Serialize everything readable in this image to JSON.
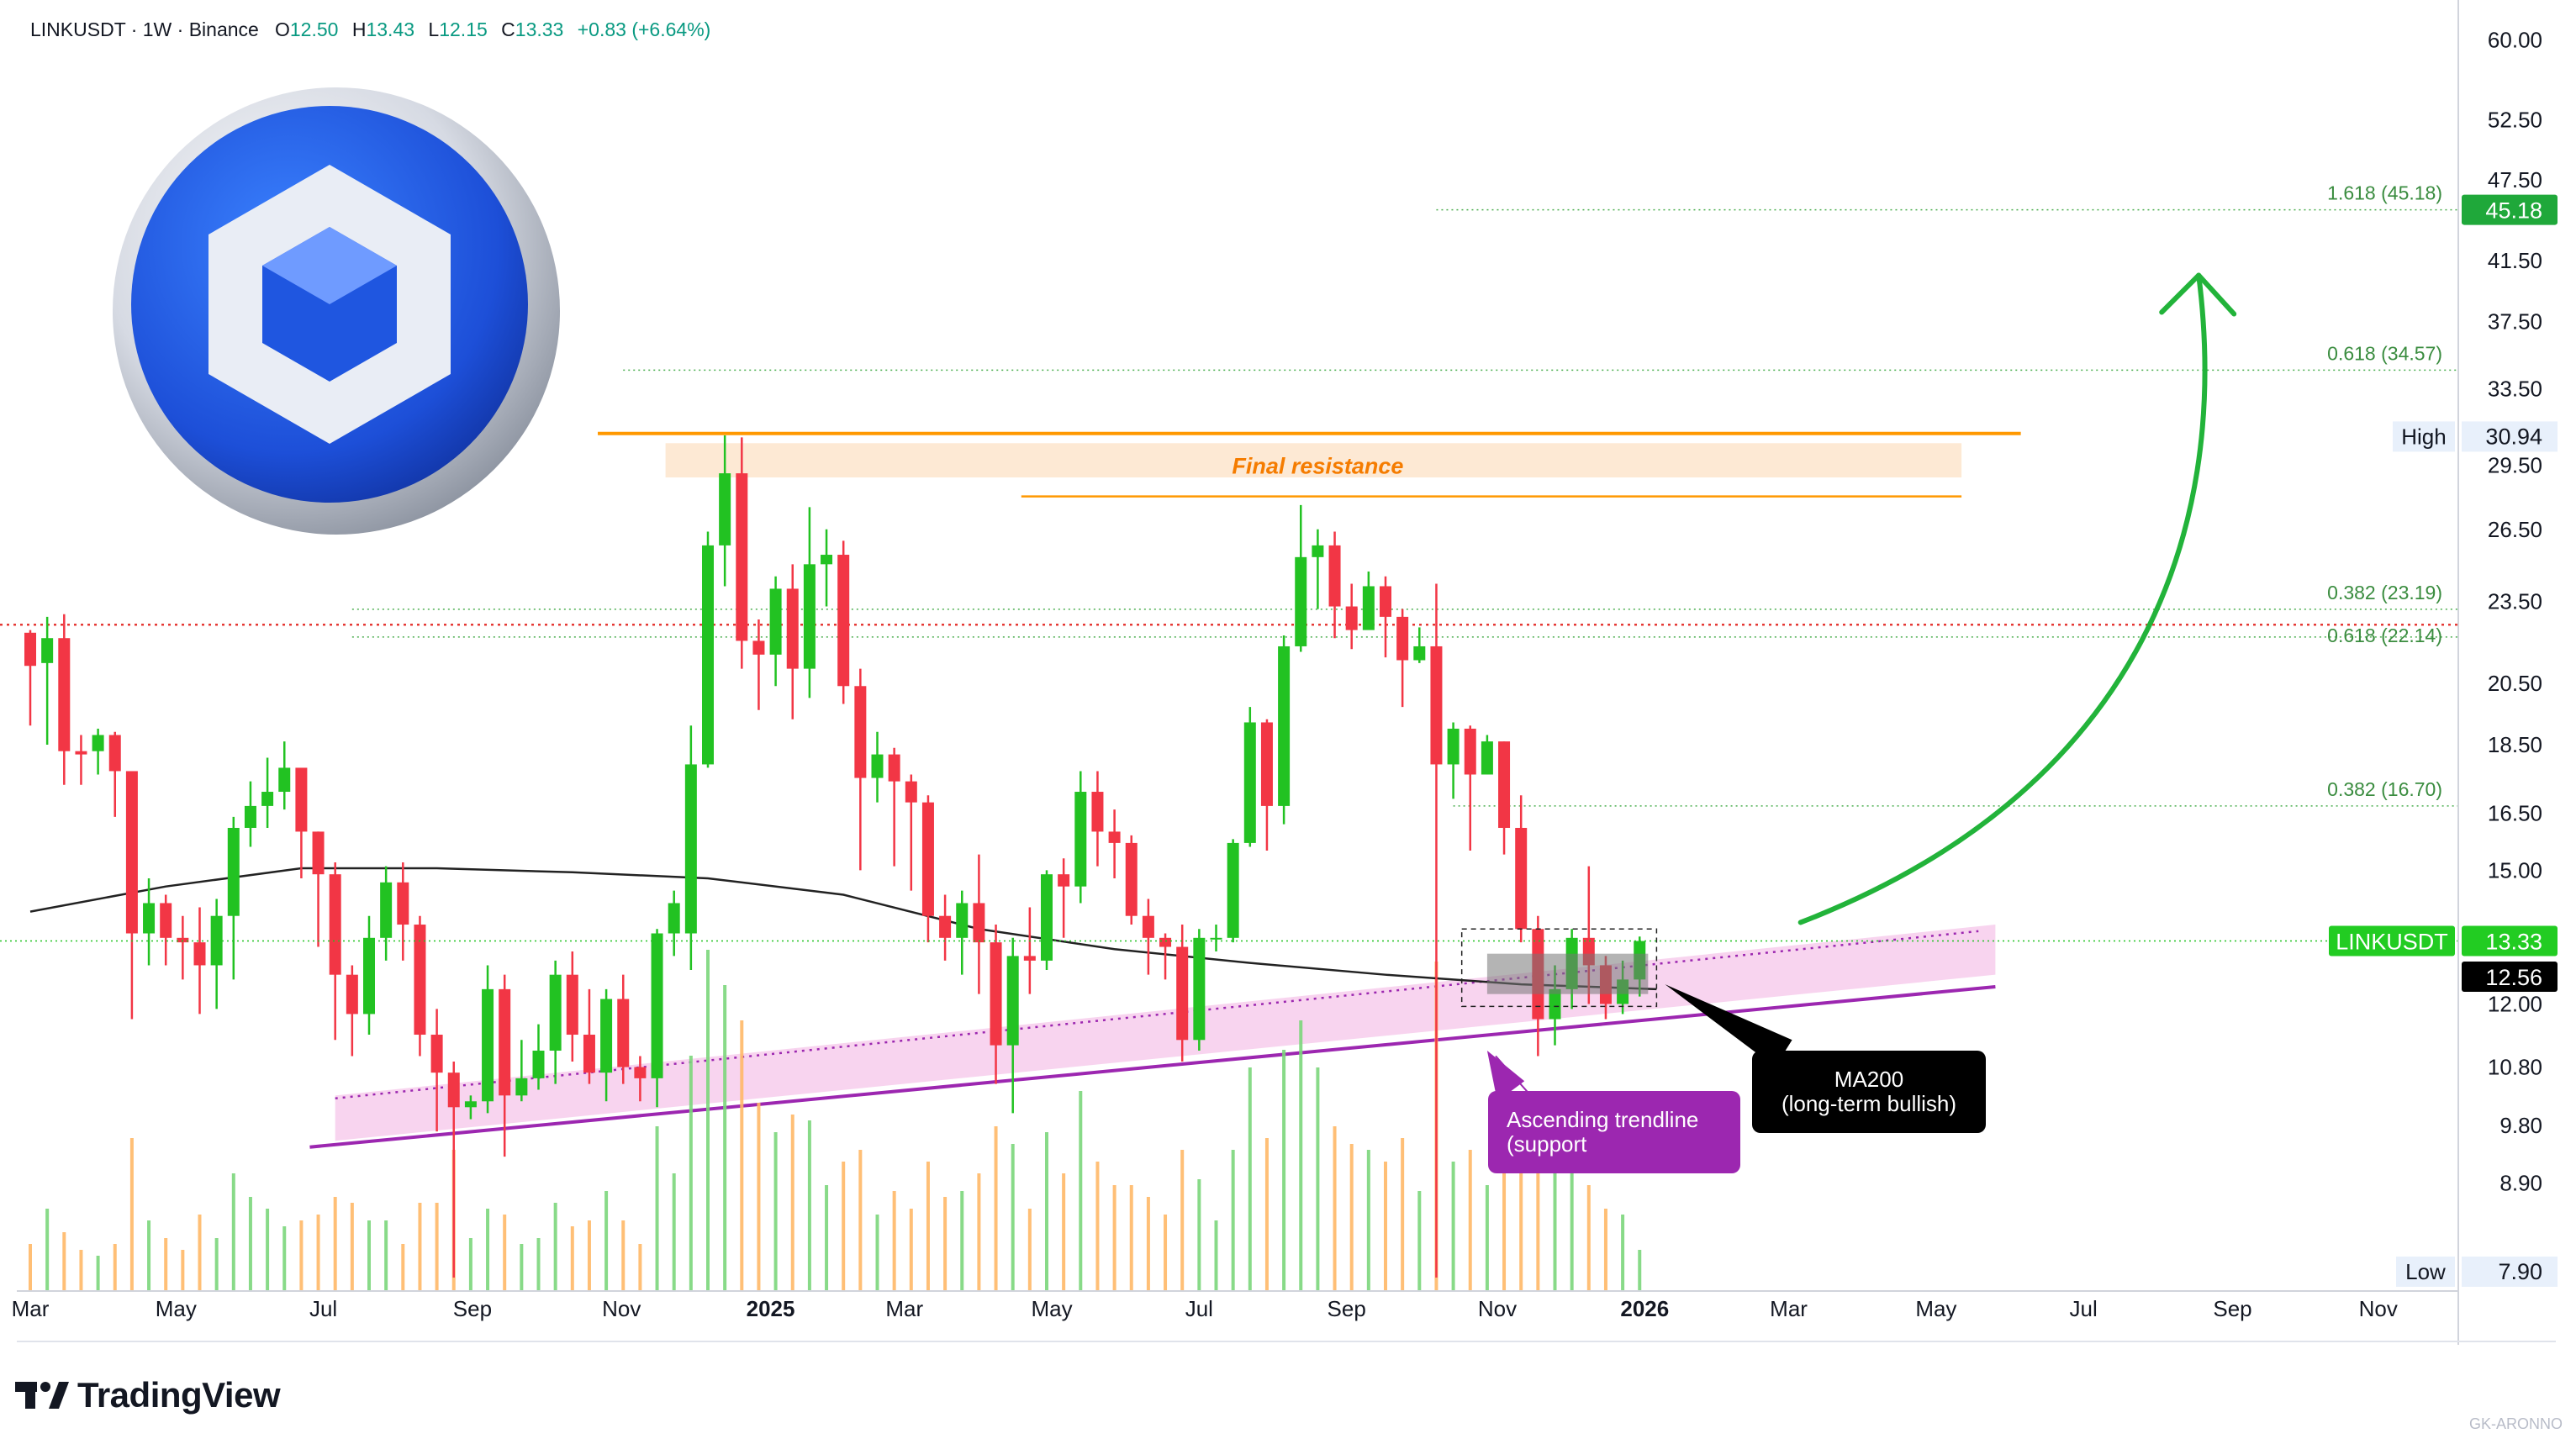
{
  "header": {
    "symbol_line": "LINKUSDT · 1W · Binance",
    "open_key": "O",
    "open": "12.50",
    "high_key": "H",
    "high": "13.43",
    "low_key": "L",
    "low": "12.15",
    "close_key": "C",
    "close": "13.33",
    "change": "+0.83 (+6.64%)"
  },
  "brand": {
    "name": "TradingView",
    "watermark": "GK-ARONNO"
  },
  "colors": {
    "up": "#22c222",
    "down": "#f23645",
    "ma200": "#222222",
    "fib": "#4caf50",
    "resistance": "#ff9800",
    "trendline": "#9c27b0",
    "trend_band": "#f6c5ea",
    "target_arrow": "#22b33a",
    "red_level": "#e53935"
  },
  "chart_data": {
    "type": "candlestick",
    "symbol": "LINKUSDT",
    "interval": "1W",
    "exchange": "Binance",
    "y_scale": "log",
    "ylim": [
      7.6,
      62
    ],
    "y_ticks": [
      "60.00",
      "52.50",
      "47.50",
      "41.50",
      "37.50",
      "33.50",
      "29.50",
      "26.50",
      "23.50",
      "20.50",
      "18.50",
      "16.50",
      "15.00",
      "12.00",
      "10.80",
      "9.80",
      "8.90"
    ],
    "x_ticks": [
      {
        "label": "Mar",
        "i": 0,
        "bold": false
      },
      {
        "label": "May",
        "i": 8.6,
        "bold": false
      },
      {
        "label": "Jul",
        "i": 17.3,
        "bold": false
      },
      {
        "label": "Sep",
        "i": 26.1,
        "bold": false
      },
      {
        "label": "Nov",
        "i": 34.9,
        "bold": false
      },
      {
        "label": "2025",
        "i": 43.7,
        "bold": true
      },
      {
        "label": "Mar",
        "i": 51.6,
        "bold": false
      },
      {
        "label": "May",
        "i": 60.3,
        "bold": false
      },
      {
        "label": "Jul",
        "i": 69.0,
        "bold": false
      },
      {
        "label": "Sep",
        "i": 77.7,
        "bold": false
      },
      {
        "label": "Nov",
        "i": 86.6,
        "bold": false
      },
      {
        "label": "2026",
        "i": 95.3,
        "bold": true
      },
      {
        "label": "Mar",
        "i": 103.8,
        "bold": false
      },
      {
        "label": "May",
        "i": 112.5,
        "bold": false
      },
      {
        "label": "Jul",
        "i": 121.2,
        "bold": false
      },
      {
        "label": "Sep",
        "i": 130.0,
        "bold": false
      },
      {
        "label": "Nov",
        "i": 138.6,
        "bold": false
      }
    ],
    "candles": [
      [
        0,
        22.3,
        21.1,
        22.4,
        19.1
      ],
      [
        1,
        21.2,
        22.1,
        22.9,
        18.5
      ],
      [
        2,
        22.1,
        18.3,
        23.0,
        17.3
      ],
      [
        3,
        18.3,
        18.2,
        18.8,
        17.3
      ],
      [
        4,
        18.3,
        18.8,
        19.0,
        17.6
      ],
      [
        5,
        18.8,
        17.7,
        18.9,
        16.4
      ],
      [
        6,
        17.7,
        13.5,
        17.7,
        11.7
      ],
      [
        7,
        13.5,
        14.2,
        14.8,
        12.8
      ],
      [
        8,
        14.2,
        13.4,
        14.4,
        12.8
      ],
      [
        9,
        13.4,
        13.3,
        13.9,
        12.5
      ],
      [
        10,
        13.3,
        12.8,
        14.1,
        11.8
      ],
      [
        11,
        12.8,
        13.9,
        14.3,
        11.9
      ],
      [
        12,
        13.9,
        16.1,
        16.4,
        12.5
      ],
      [
        13,
        16.1,
        16.7,
        17.4,
        15.6
      ],
      [
        14,
        16.7,
        17.1,
        18.1,
        16.1
      ],
      [
        15,
        17.1,
        17.8,
        18.6,
        16.6
      ],
      [
        16,
        17.8,
        16.0,
        17.7,
        14.8
      ],
      [
        17,
        16.0,
        14.9,
        16.0,
        13.2
      ],
      [
        18,
        14.9,
        12.6,
        15.2,
        11.3
      ],
      [
        19,
        12.6,
        11.8,
        12.8,
        11.0
      ],
      [
        20,
        11.8,
        13.4,
        13.9,
        11.4
      ],
      [
        21,
        13.4,
        14.7,
        15.1,
        12.9
      ],
      [
        22,
        14.7,
        13.7,
        15.2,
        12.9
      ],
      [
        23,
        13.7,
        11.4,
        13.9,
        11.0
      ],
      [
        24,
        11.4,
        10.7,
        11.9,
        9.7
      ],
      [
        25,
        10.7,
        10.1,
        10.9,
        7.6
      ],
      [
        26,
        10.1,
        10.2,
        10.3,
        9.9
      ],
      [
        27,
        10.2,
        12.3,
        12.8,
        10.0
      ],
      [
        28,
        12.3,
        10.3,
        12.6,
        9.3
      ],
      [
        29,
        10.3,
        10.6,
        11.3,
        10.2
      ],
      [
        30,
        10.6,
        11.1,
        11.6,
        10.4
      ],
      [
        31,
        11.1,
        12.6,
        12.9,
        10.5
      ],
      [
        32,
        12.6,
        11.4,
        13.1,
        10.9
      ],
      [
        33,
        11.4,
        10.7,
        12.3,
        10.5
      ],
      [
        34,
        10.7,
        12.1,
        12.3,
        10.2
      ],
      [
        35,
        12.1,
        10.8,
        12.6,
        10.5
      ],
      [
        36,
        10.8,
        10.6,
        11.0,
        10.2
      ],
      [
        37,
        10.6,
        13.5,
        13.6,
        10.1
      ],
      [
        38,
        13.5,
        14.2,
        14.5,
        13.0
      ],
      [
        39,
        13.5,
        17.9,
        19.1,
        12.7
      ],
      [
        40,
        17.9,
        25.8,
        26.4,
        17.8
      ],
      [
        41,
        25.8,
        29.1,
        31.0,
        24.1
      ],
      [
        42,
        29.1,
        22.0,
        30.9,
        21.0
      ],
      [
        43,
        22.0,
        21.5,
        22.8,
        19.6
      ],
      [
        44,
        21.5,
        24.0,
        24.5,
        20.4
      ],
      [
        45,
        24.0,
        21.0,
        25.0,
        19.3
      ],
      [
        46,
        21.0,
        25.0,
        27.5,
        20.0
      ],
      [
        47,
        25.0,
        25.4,
        26.5,
        23.3
      ],
      [
        48,
        25.4,
        20.4,
        26.0,
        19.8
      ],
      [
        49,
        20.4,
        17.5,
        21.0,
        15.0
      ],
      [
        50,
        17.5,
        18.2,
        18.9,
        16.8
      ],
      [
        51,
        18.2,
        17.4,
        18.4,
        15.1
      ],
      [
        52,
        17.4,
        16.8,
        17.6,
        14.5
      ],
      [
        53,
        16.8,
        13.9,
        17.0,
        13.3
      ],
      [
        54,
        13.9,
        13.4,
        14.4,
        12.9
      ],
      [
        55,
        13.4,
        14.2,
        14.5,
        12.6
      ],
      [
        56,
        14.2,
        13.3,
        15.4,
        12.2
      ],
      [
        57,
        13.3,
        11.2,
        13.7,
        10.5
      ],
      [
        58,
        11.2,
        13.0,
        13.4,
        10.0
      ],
      [
        59,
        13.0,
        12.9,
        14.1,
        12.2
      ],
      [
        60,
        12.9,
        14.9,
        15.0,
        12.7
      ],
      [
        61,
        14.9,
        14.6,
        15.3,
        13.4
      ],
      [
        62,
        14.6,
        17.1,
        17.7,
        14.2
      ],
      [
        63,
        17.1,
        16.0,
        17.7,
        15.1
      ],
      [
        64,
        16.0,
        15.7,
        16.6,
        14.8
      ],
      [
        65,
        15.7,
        13.9,
        15.9,
        13.7
      ],
      [
        66,
        13.9,
        13.4,
        14.3,
        12.6
      ],
      [
        67,
        13.4,
        13.2,
        13.5,
        12.5
      ],
      [
        68,
        13.2,
        11.3,
        13.7,
        10.9
      ],
      [
        69,
        11.3,
        13.4,
        13.6,
        11.1
      ],
      [
        70,
        13.4,
        13.4,
        13.7,
        13.1
      ],
      [
        71,
        13.4,
        15.7,
        15.8,
        13.3
      ],
      [
        72,
        15.7,
        19.2,
        19.7,
        15.6
      ],
      [
        73,
        19.2,
        16.7,
        19.3,
        15.5
      ],
      [
        74,
        16.7,
        21.8,
        22.2,
        16.2
      ],
      [
        75,
        21.8,
        25.3,
        27.6,
        21.6
      ],
      [
        76,
        25.3,
        25.8,
        26.5,
        23.2
      ],
      [
        77,
        25.8,
        23.3,
        26.4,
        22.1
      ],
      [
        78,
        23.3,
        22.4,
        24.2,
        21.7
      ],
      [
        79,
        22.4,
        24.1,
        24.7,
        22.6
      ],
      [
        80,
        24.1,
        22.9,
        24.5,
        21.4
      ],
      [
        81,
        22.9,
        21.3,
        23.2,
        19.7
      ],
      [
        82,
        21.3,
        21.8,
        22.5,
        21.2
      ],
      [
        83,
        21.8,
        17.9,
        24.2,
        7.6
      ],
      [
        84,
        17.9,
        19.0,
        19.2,
        16.9
      ],
      [
        85,
        19.0,
        17.6,
        19.1,
        15.5
      ],
      [
        86,
        17.6,
        18.6,
        18.8,
        17.6
      ],
      [
        87,
        18.6,
        16.1,
        18.6,
        15.4
      ],
      [
        88,
        16.1,
        13.6,
        17.0,
        13.3
      ],
      [
        89,
        13.6,
        11.7,
        13.9,
        11.0
      ],
      [
        90,
        11.7,
        12.3,
        12.8,
        11.2
      ],
      [
        91,
        12.3,
        13.4,
        13.6,
        11.9
      ],
      [
        92,
        13.4,
        12.8,
        15.1,
        12.0
      ],
      [
        93,
        12.8,
        12.0,
        13.0,
        11.7
      ],
      [
        94,
        12.0,
        12.5,
        12.9,
        11.8
      ],
      [
        95,
        12.5,
        13.33,
        13.43,
        12.15
      ]
    ],
    "volume": [
      [
        0,
        8
      ],
      [
        1,
        14
      ],
      [
        2,
        10
      ],
      [
        3,
        7
      ],
      [
        4,
        6
      ],
      [
        5,
        8
      ],
      [
        6,
        26
      ],
      [
        7,
        12
      ],
      [
        8,
        9
      ],
      [
        9,
        7
      ],
      [
        10,
        13
      ],
      [
        11,
        9
      ],
      [
        12,
        20
      ],
      [
        13,
        16
      ],
      [
        14,
        14
      ],
      [
        15,
        11
      ],
      [
        16,
        12
      ],
      [
        17,
        13
      ],
      [
        18,
        16
      ],
      [
        19,
        15
      ],
      [
        20,
        12
      ],
      [
        21,
        12
      ],
      [
        22,
        8
      ],
      [
        23,
        15
      ],
      [
        24,
        15
      ],
      [
        25,
        24
      ],
      [
        26,
        9
      ],
      [
        27,
        14
      ],
      [
        28,
        13
      ],
      [
        29,
        8
      ],
      [
        30,
        9
      ],
      [
        31,
        15
      ],
      [
        32,
        11
      ],
      [
        33,
        12
      ],
      [
        34,
        17
      ],
      [
        35,
        12
      ],
      [
        36,
        8
      ],
      [
        37,
        28
      ],
      [
        38,
        20
      ],
      [
        39,
        40
      ],
      [
        40,
        58
      ],
      [
        41,
        52
      ],
      [
        42,
        46
      ],
      [
        43,
        32
      ],
      [
        44,
        27
      ],
      [
        45,
        30
      ],
      [
        46,
        29
      ],
      [
        47,
        18
      ],
      [
        48,
        22
      ],
      [
        49,
        24
      ],
      [
        50,
        13
      ],
      [
        51,
        17
      ],
      [
        52,
        14
      ],
      [
        53,
        22
      ],
      [
        54,
        16
      ],
      [
        55,
        17
      ],
      [
        56,
        20
      ],
      [
        57,
        28
      ],
      [
        58,
        25
      ],
      [
        59,
        14
      ],
      [
        60,
        27
      ],
      [
        61,
        20
      ],
      [
        62,
        34
      ],
      [
        63,
        22
      ],
      [
        64,
        18
      ],
      [
        65,
        18
      ],
      [
        66,
        16
      ],
      [
        67,
        13
      ],
      [
        68,
        24
      ],
      [
        69,
        19
      ],
      [
        70,
        12
      ],
      [
        71,
        24
      ],
      [
        72,
        38
      ],
      [
        73,
        26
      ],
      [
        74,
        41
      ],
      [
        75,
        46
      ],
      [
        76,
        38
      ],
      [
        77,
        28
      ],
      [
        78,
        25
      ],
      [
        79,
        24
      ],
      [
        80,
        22
      ],
      [
        81,
        26
      ],
      [
        82,
        17
      ],
      [
        83,
        56
      ],
      [
        84,
        22
      ],
      [
        85,
        24
      ],
      [
        86,
        18
      ],
      [
        87,
        26
      ],
      [
        88,
        30
      ],
      [
        89,
        32
      ],
      [
        90,
        22
      ],
      [
        91,
        20
      ],
      [
        92,
        18
      ],
      [
        93,
        14
      ],
      [
        94,
        13
      ],
      [
        95,
        7
      ]
    ],
    "ma200": [
      [
        0,
        14.0
      ],
      [
        8,
        14.6
      ],
      [
        16,
        15.05
      ],
      [
        24,
        15.05
      ],
      [
        32,
        14.95
      ],
      [
        40,
        14.8
      ],
      [
        48,
        14.4
      ],
      [
        56,
        13.6
      ],
      [
        64,
        13.15
      ],
      [
        72,
        12.85
      ],
      [
        80,
        12.6
      ],
      [
        88,
        12.4
      ],
      [
        96,
        12.3
      ]
    ],
    "current_price": "13.33",
    "ma200_value": "12.56",
    "high": {
      "label": "High",
      "value": "30.94"
    },
    "low": {
      "label": "Low",
      "value": "7.90"
    },
    "fib_levels": [
      {
        "label": "1.618 (45.18)",
        "price": 45.18,
        "from": 83
      },
      {
        "label": "0.618 (34.57)",
        "price": 34.57,
        "from": 35
      },
      {
        "label": "0.382 (23.19)",
        "price": 23.19,
        "from": 19
      },
      {
        "label": "0.618 (22.14)",
        "price": 22.14,
        "from": 19
      },
      {
        "label": "0.382 (16.70)",
        "price": 16.7,
        "from": 84
      }
    ],
    "price_label": "LINKUSDT",
    "target_label": "45.18",
    "annotations": {
      "final_resistance": "Final resistance",
      "trendline_title": "Ascending trendline",
      "trendline_sub": "(support",
      "ma200_title": "MA200",
      "ma200_sub": "(long-term bullish)"
    }
  }
}
